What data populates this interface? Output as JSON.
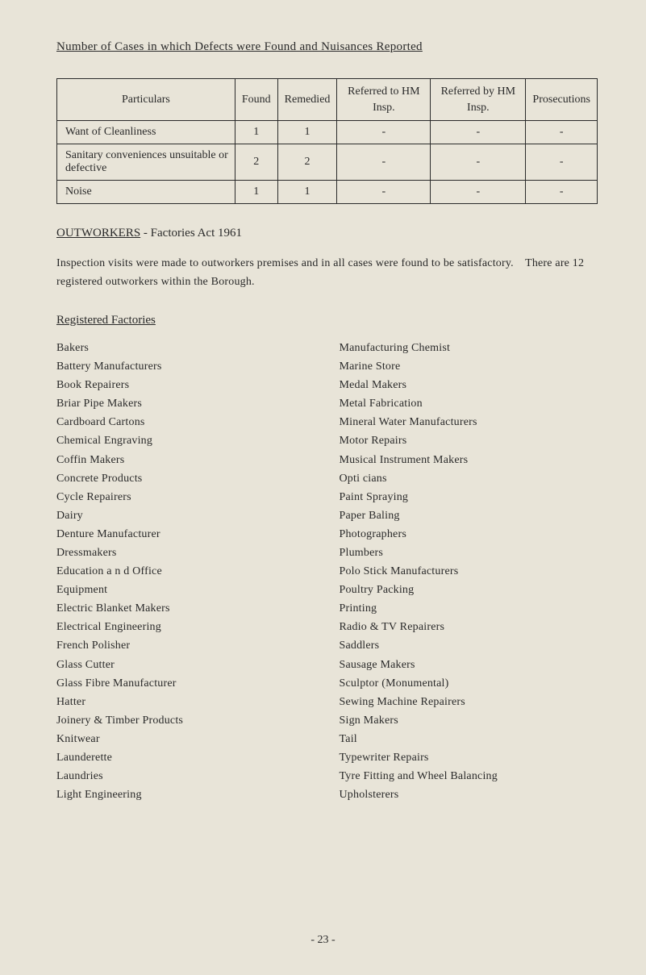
{
  "page_title": "Number of Cases in which Defects were Found and Nuisances Reported",
  "table": {
    "headers": [
      "Particulars",
      "Found",
      "Remedied",
      "Referred to HM Insp.",
      "Referred by HM Insp.",
      "Prosecutions"
    ],
    "rows": [
      {
        "label": "Want of Cleanliness",
        "values": [
          "1",
          "1",
          "-",
          "-",
          "-"
        ]
      },
      {
        "label": "Sanitary conveniences unsuitable or defective",
        "values": [
          "2",
          "2",
          "-",
          "-",
          "-"
        ]
      },
      {
        "label": "Noise",
        "values": [
          "1",
          "1",
          "-",
          "-",
          "-"
        ]
      }
    ]
  },
  "outworkers_heading_prefix": "OUTWORKERS",
  "outworkers_heading_rest": " - Factories Act 1961",
  "outworkers_text": "Inspection visits were made to outworkers premises and in all cases were found to be satisfactory. There are 12 registered outworkers within the Borough.",
  "registered_heading": "Registered Factories",
  "left_col": [
    "Bakers",
    "Battery Manufacturers",
    "Book Repairers",
    "Briar Pipe Makers",
    "Cardboard Cartons",
    "Chemical Engraving",
    "Coffin Makers",
    "Concrete Products",
    "Cycle Repairers",
    "Dairy",
    "Denture Manufacturer",
    "Dressmakers",
    "Education a n d Office",
    "Equipment",
    "Electric Blanket Makers",
    "Electrical Engineering",
    "French Polisher",
    "Glass Cutter",
    "Glass Fibre Manufacturer",
    "Hatter",
    "Joinery & Timber Products",
    "Knitwear",
    "Launderette",
    "Laundries",
    "Light Engineering"
  ],
  "right_col": [
    "Manufacturing Chemist",
    "Marine Store",
    "Medal Makers",
    "Metal Fabrication",
    "Mineral Water Manufacturers",
    "Motor Repairs",
    "Musical Instrument Makers",
    "Opti cians",
    "Paint Spraying",
    "Paper Baling",
    "Photographers",
    "Plumbers",
    "Polo Stick Manufacturers",
    "Poultry Packing",
    "Printing",
    "Radio & TV Repairers",
    "Saddlers",
    "Sausage Makers",
    "Sculptor (Monumental)",
    "Sewing Machine Repairers",
    "Sign Makers",
    "Tail",
    "Typewriter Repairs",
    "Tyre Fitting and Wheel Balancing",
    "Upholsterers"
  ],
  "page_number": "- 23 -"
}
